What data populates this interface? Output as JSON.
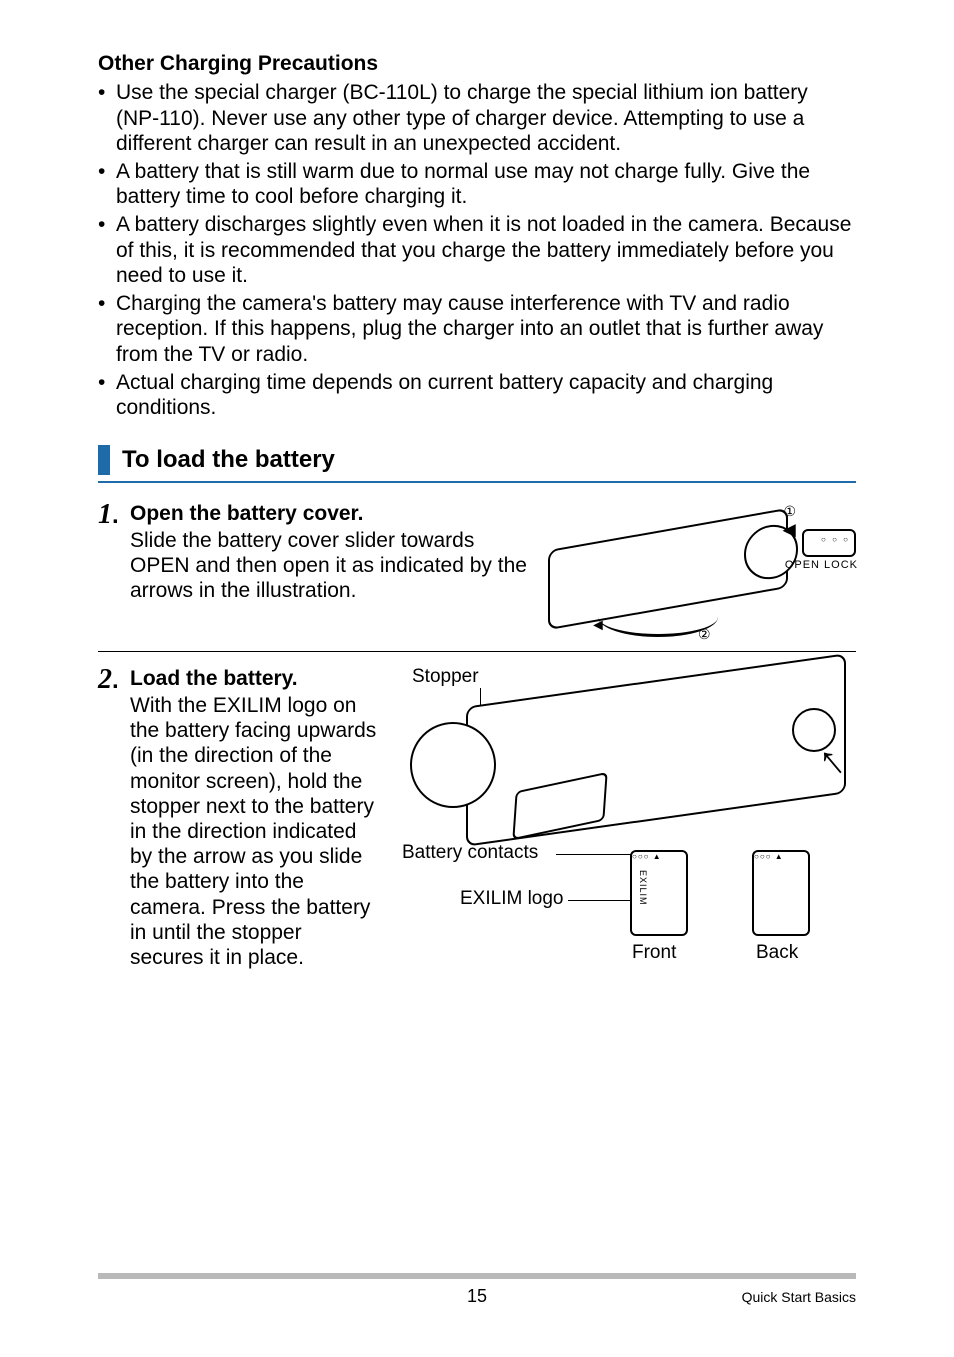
{
  "headings": {
    "precautions": "Other Charging Precautions",
    "section": "To load the battery"
  },
  "precautions": [
    "Use the special charger (BC-110L) to charge the special lithium ion battery (NP-110). Never use any other type of charger device. Attempting to use a different charger can result in an unexpected accident.",
    "A battery that is still warm due to normal use may not charge fully. Give the battery time to cool before charging it.",
    "A battery discharges slightly even when it is not loaded in the camera. Because of this, it is recommended that you charge the battery immediately before you need to use it.",
    "Charging the camera's battery may cause interference with TV and radio reception. If this happens, plug the charger into an outlet that is further away from the TV or radio.",
    "Actual charging time depends on current battery capacity and charging conditions."
  ],
  "steps": {
    "s1": {
      "num": "1",
      "dot": ".",
      "title": "Open the battery cover.",
      "desc": "Slide the battery cover slider towards OPEN and then open it as indicated by the arrows in the illustration."
    },
    "s2": {
      "num": "2",
      "dot": ".",
      "title": "Load the battery.",
      "desc": "With the EXILIM logo on the battery facing upwards (in the direction of the monitor screen), hold the stopper next to the battery in the direction indicated by the arrow as you slide the battery into the camera. Press the battery in until the stopper secures it in place."
    }
  },
  "illus1": {
    "circled1": "①",
    "circled2": "②",
    "arrowLeft": "◄",
    "dots": "○ ○ ○",
    "openLock": "OPEN  LOCK",
    "curveHead": "◄"
  },
  "illus2": {
    "stopper": "Stopper",
    "contacts": "Battery contacts",
    "exilim": "EXILIM logo",
    "front": "Front",
    "back": "Back",
    "upArrow": "↑",
    "exilimVert": "EXILIM",
    "contactGlyph": "○○○  ▲",
    "contactGlyph2": "○○○  ▲"
  },
  "footer": {
    "pageNum": "15",
    "section": "Quick Start Basics"
  },
  "colors": {
    "accent": "#1f6aa8",
    "rule": "#b9b9b9"
  }
}
